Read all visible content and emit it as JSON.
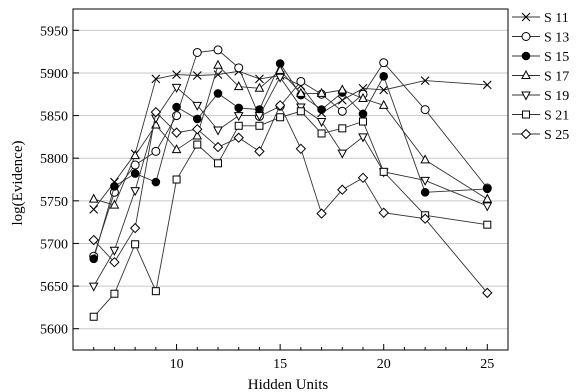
{
  "chart_data": {
    "type": "line",
    "xlabel": "Hidden Units",
    "ylabel": "log(Evidence)",
    "xlim": [
      5,
      26
    ],
    "ylim": [
      5575,
      5975
    ],
    "xticks": [
      10,
      15,
      20,
      25
    ],
    "yticks": [
      5600,
      5650,
      5700,
      5750,
      5800,
      5850,
      5900,
      5950
    ],
    "grid": "horizontal",
    "legend_position": "right",
    "series": [
      {
        "name": "S 11",
        "marker": "x",
        "points": [
          [
            6,
            5740
          ],
          [
            7,
            5772
          ],
          [
            8,
            5805
          ],
          [
            9,
            5893
          ],
          [
            10,
            5898
          ],
          [
            11,
            5897
          ],
          [
            12,
            5898
          ],
          [
            13,
            5902
          ],
          [
            14,
            5893
          ],
          [
            15,
            5897
          ],
          [
            16,
            5885
          ],
          [
            17,
            5853
          ],
          [
            18,
            5868
          ],
          [
            19,
            5882
          ],
          [
            20,
            5880
          ],
          [
            22,
            5891
          ],
          [
            25,
            5886
          ]
        ]
      },
      {
        "name": "S 13",
        "marker": "open-circle",
        "points": [
          [
            6,
            5685
          ],
          [
            7,
            5760
          ],
          [
            8,
            5792
          ],
          [
            9,
            5808
          ],
          [
            10,
            5850
          ],
          [
            11,
            5924
          ],
          [
            12,
            5927
          ],
          [
            13,
            5906
          ],
          [
            14,
            5849
          ],
          [
            15,
            5861
          ],
          [
            16,
            5890
          ],
          [
            17,
            5875
          ],
          [
            18,
            5855
          ],
          [
            19,
            5875
          ],
          [
            20,
            5912
          ],
          [
            22,
            5857
          ],
          [
            25,
            5765
          ]
        ]
      },
      {
        "name": "S 15",
        "marker": "filled-circle",
        "points": [
          [
            6,
            5682
          ],
          [
            7,
            5767
          ],
          [
            8,
            5782
          ],
          [
            9,
            5772
          ],
          [
            10,
            5860
          ],
          [
            11,
            5846
          ],
          [
            12,
            5876
          ],
          [
            13,
            5859
          ],
          [
            14,
            5857
          ],
          [
            15,
            5911
          ],
          [
            16,
            5874
          ],
          [
            17,
            5857
          ],
          [
            18,
            5877
          ],
          [
            19,
            5852
          ],
          [
            20,
            5896
          ],
          [
            22,
            5760
          ],
          [
            25,
            5764
          ]
        ]
      },
      {
        "name": "S 17",
        "marker": "triangle-up",
        "points": [
          [
            6,
            5752
          ],
          [
            7,
            5745
          ],
          [
            8,
            5803
          ],
          [
            9,
            5839
          ],
          [
            10,
            5810
          ],
          [
            11,
            5826
          ],
          [
            12,
            5909
          ],
          [
            13,
            5884
          ],
          [
            14,
            5882
          ],
          [
            15,
            5903
          ],
          [
            16,
            5876
          ],
          [
            17,
            5876
          ],
          [
            18,
            5880
          ],
          [
            19,
            5870
          ],
          [
            20,
            5862
          ],
          [
            22,
            5798
          ],
          [
            25,
            5752
          ]
        ]
      },
      {
        "name": "S 19",
        "marker": "triangle-down",
        "points": [
          [
            6,
            5650
          ],
          [
            7,
            5692
          ],
          [
            8,
            5762
          ],
          [
            9,
            5847
          ],
          [
            10,
            5883
          ],
          [
            11,
            5862
          ],
          [
            12,
            5833
          ],
          [
            13,
            5850
          ],
          [
            14,
            5850
          ],
          [
            15,
            5895
          ],
          [
            16,
            5860
          ],
          [
            17,
            5843
          ],
          [
            18,
            5806
          ],
          [
            19,
            5825
          ],
          [
            20,
            5784
          ],
          [
            22,
            5774
          ],
          [
            25,
            5744
          ]
        ]
      },
      {
        "name": "S 21",
        "marker": "square",
        "points": [
          [
            6,
            5614
          ],
          [
            7,
            5641
          ],
          [
            8,
            5699
          ],
          [
            9,
            5644
          ],
          [
            10,
            5775
          ],
          [
            11,
            5816
          ],
          [
            12,
            5794
          ],
          [
            13,
            5838
          ],
          [
            14,
            5838
          ],
          [
            15,
            5848
          ],
          [
            16,
            5855
          ],
          [
            17,
            5829
          ],
          [
            18,
            5835
          ],
          [
            19,
            5843
          ],
          [
            20,
            5784
          ],
          [
            22,
            5733
          ],
          [
            25,
            5722
          ]
        ]
      },
      {
        "name": "S 25",
        "marker": "diamond",
        "points": [
          [
            6,
            5704
          ],
          [
            7,
            5678
          ],
          [
            8,
            5718
          ],
          [
            9,
            5854
          ],
          [
            10,
            5830
          ],
          [
            11,
            5834
          ],
          [
            12,
            5813
          ],
          [
            13,
            5824
          ],
          [
            14,
            5808
          ],
          [
            15,
            5862
          ],
          [
            16,
            5811
          ],
          [
            17,
            5735
          ],
          [
            18,
            5763
          ],
          [
            19,
            5777
          ],
          [
            20,
            5736
          ],
          [
            22,
            5729
          ],
          [
            25,
            5642
          ]
        ]
      }
    ]
  }
}
